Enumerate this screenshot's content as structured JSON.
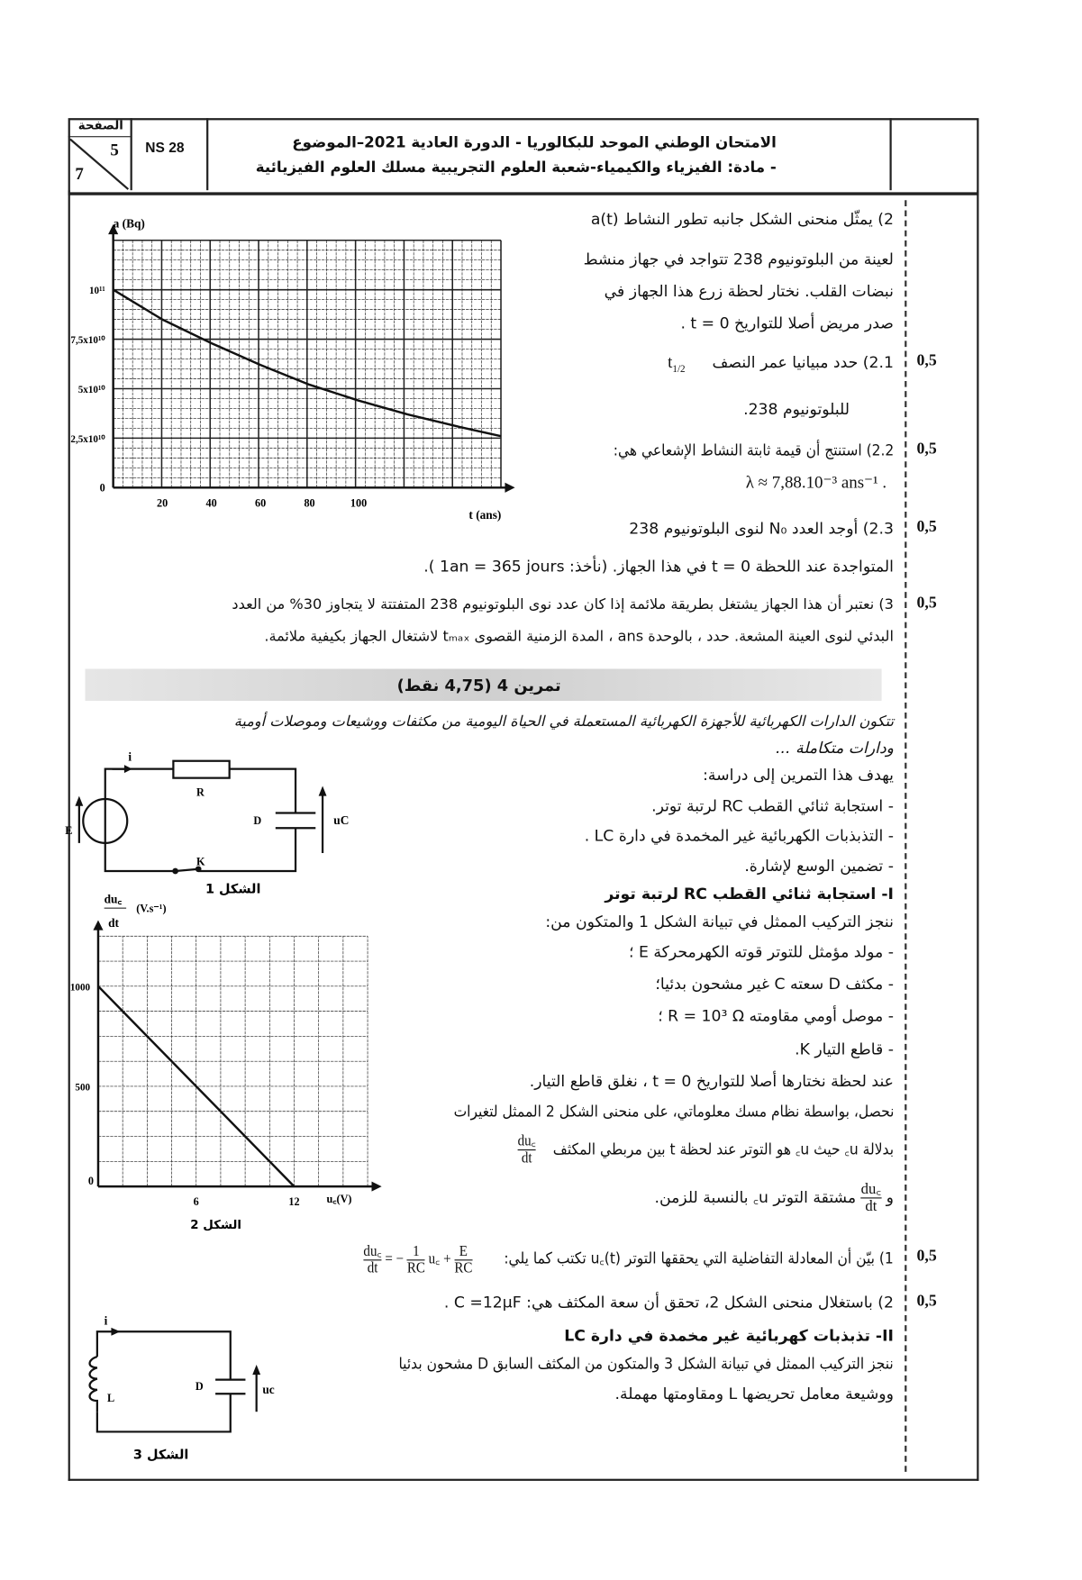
{
  "header": {
    "page_label": "الصفحة",
    "page_current": "5",
    "page_total": "7",
    "code": "NS 28",
    "title_line1": "الامتحان الوطني الموحد للبكالوريا - الدورة العادية 2021–الموضوع",
    "title_line2": "- مادة: الفيزياء والكيمياء-شعبة العلوم التجريبية مسلك العلوم الفيزيائية"
  },
  "ex3": {
    "q2_line1": "2) يمثّل منحنى الشكل جانبه تطور النشاط a(t)",
    "q2_line2": "لعينة من البلوتونيوم 238  تتواجد في جهاز منشط",
    "q2_line3": "نبضات القلب. نختار لحظة زرع هذا الجهاز في",
    "q2_line4": "صدر مريض أصلا للتواريخ t = 0 .",
    "q21_line1": "2.1) حدد مبيانيا عمر النصف",
    "q21_symbol": "t",
    "q21_sub": "1/2",
    "q21_line2": "للبلوتونيوم 238.",
    "q22_line1": "2.2) استنتج أن قيمة ثابتة النشاط الإشعاعي هي:",
    "q22_line2": "λ ≈ 7,88.10⁻³ ans⁻¹ .",
    "q23_line1": "2.3) أوجد العدد N₀ لنوى البلوتونيوم 238",
    "q23_line2": "المتواجدة عند اللحظة t = 0 في هذا الجهاز. (نأخذ: 1an = 365 jours ).",
    "q3_line1": "3) نعتبر أن هذا الجهاز يشتغل بطريقة ملائمة إذا كان عدد نوى البلوتونيوم 238 المتفتتة لا يتجاوز 30% من العدد",
    "q3_line2": "البدئي لنوى العينة المشعة. حدد ، بالوحدة ans ، المدة الزمنية القصوى tₘₐₓ لاشتغال الجهاز بكيفية ملائمة.",
    "marks": [
      "0,5",
      "0,5",
      "0,5",
      "0,5"
    ]
  },
  "ex4": {
    "title": "تمرين 4 (4,75 نقط)",
    "intro_line1": "تتكون الدارات الكهربائية للأجهزة الكهربائية المستعملة في الحياة اليومية من مكثفات ووشيعات وموصلات أومية",
    "intro_line2": "ودارات متكاملة ...",
    "aim": "يهدف هذا التمرين إلى دراسة:",
    "aims": [
      "-  استجابة ثنائي القطب RC لرتبة توتر.",
      "-  التذبذبات الكهربائية غير المخمدة في دارة LC .",
      "-  تضمين الوسع لإشارة."
    ],
    "part1_title": "I- استجابة ثنائي القطب RC لرتبة توتر",
    "part1_setup": "ننجز التركيب الممثل في تبيانة الشكل 1 والمتكون من:",
    "components": [
      "-  مولد مؤمثل للتوتر قوته الكهرمحركة E ؛",
      "-  مكثف D سعته C  غير مشحون بدئيا؛",
      "-  موصل أومي مقاومته  R = 10³ Ω ؛",
      "-  قاطع التيار K."
    ],
    "close_switch": "عند لحظة نختارها أصلا للتواريخ t = 0 ، نغلق قاطع التيار.",
    "curve_line": "نحصل، بواسطة نظام مسك معلوماتي، على منحنى الشكل 2 الممثل لتغيرات",
    "frac_num": "du꜀",
    "frac_den": "dt",
    "function_of": "بدلالة  u꜀  حيث u꜀ هو التوتر عند لحظة t بين مربطي المكثف",
    "and": "و",
    "derivative": "مشتقة التوتر u꜀ بالنسبة للزمن.",
    "q1_text": "1) بيّن أن المعادلة التفاضلية التي يحققها التوتر u꜀(t) تكتب كما يلي:",
    "q1_eq_lhs_num": "du꜀",
    "q1_eq_lhs_den": "dt",
    "q1_eq_mid": "= −",
    "q1_eq_t1_num": "1",
    "q1_eq_t1_den": "RC",
    "q1_eq_uc": "u꜀ +",
    "q1_eq_t2_num": "E",
    "q1_eq_t2_den": "RC",
    "q2_text": "2) باستغلال منحنى الشكل 2، تحقق أن سعة المكثف هي:  C =12μF .",
    "part2_title": "II-  تذبذبات كهربائية غير مخمدة في دارة LC",
    "part2_line1": "ننجز التركيب الممثل في تبيانة الشكل 3 والمتكون من المكثف السابق D مشحون بدئيا",
    "part2_line2": "ووشيعة معامل تحريضها L ومقاومتها مهملة.",
    "marks": [
      "0,5",
      "0,5"
    ]
  },
  "fig1": {
    "i": "i",
    "R": "R",
    "D": "D",
    "E": "E",
    "K": "K",
    "uc": "uC",
    "caption": "الشكل 1"
  },
  "fig3": {
    "i": "i",
    "L": "L",
    "D": "D",
    "uc": "uc",
    "caption": "الشكل 3"
  },
  "chart_data": [
    {
      "type": "line",
      "ylabel": "a (Bq)",
      "xlabel": "t (ans)",
      "x_ticks": [
        "20",
        "40",
        "60",
        "80",
        "100"
      ],
      "y_ticks": [
        "0",
        "2,5x10¹⁰",
        "5x10¹⁰",
        "7,5x10¹⁰",
        "10¹¹"
      ],
      "origin_label": "0",
      "xlim": [
        0,
        158
      ],
      "ylim": [
        0,
        125000000000.0
      ],
      "grid": true,
      "x": [
        0,
        20,
        40,
        60,
        80,
        100,
        120,
        140,
        158
      ],
      "y": [
        100000000000.0,
        85000000000.0,
        73000000000.0,
        62000000000.0,
        52000000000.0,
        44000000000.0,
        37000000000.0,
        31000000000.0,
        26000000000.0
      ]
    },
    {
      "type": "line",
      "ylabel_num": "du꜀",
      "ylabel_den": "dt",
      "ylabel_unit": "(V.s⁻¹)",
      "xlabel": "u꜀(V)",
      "x_ticks": [
        "6",
        "12"
      ],
      "y_ticks": [
        "500",
        "1000"
      ],
      "origin_label": "0",
      "caption": "الشكل 2",
      "xlim": [
        0,
        16.5
      ],
      "ylim": [
        0,
        1250
      ],
      "grid": true,
      "x": [
        0,
        12
      ],
      "y": [
        1000,
        0
      ]
    }
  ]
}
